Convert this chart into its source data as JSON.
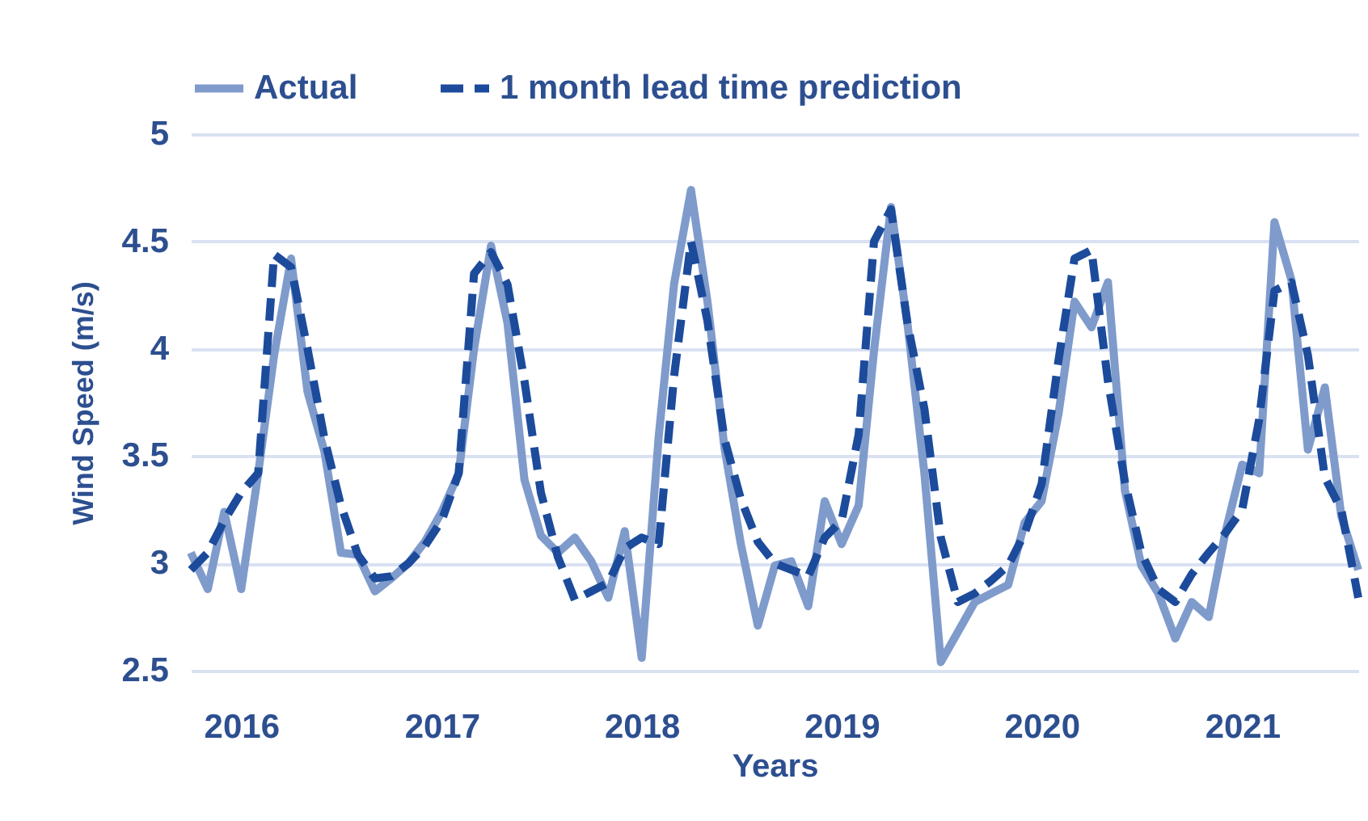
{
  "chart_data": {
    "type": "line",
    "xlabel": "Years",
    "ylabel": "Wind Speed (m/s)",
    "x": [
      "2015-10",
      "2015-11",
      "2015-12",
      "2016-01",
      "2016-02",
      "2016-03",
      "2016-04",
      "2016-05",
      "2016-06",
      "2016-07",
      "2016-08",
      "2016-09",
      "2016-10",
      "2016-11",
      "2016-12",
      "2017-01",
      "2017-02",
      "2017-03",
      "2017-04",
      "2017-05",
      "2017-06",
      "2017-07",
      "2017-08",
      "2017-09",
      "2017-10",
      "2017-11",
      "2017-12",
      "2018-01",
      "2018-02",
      "2018-03",
      "2018-04",
      "2018-05",
      "2018-06",
      "2018-07",
      "2018-08",
      "2018-09",
      "2018-10",
      "2018-11",
      "2018-12",
      "2019-01",
      "2019-02",
      "2019-03",
      "2019-04",
      "2019-05",
      "2019-06",
      "2019-07",
      "2019-08",
      "2019-09",
      "2019-10",
      "2019-11",
      "2019-12",
      "2020-01",
      "2020-02",
      "2020-03",
      "2020-04",
      "2020-05",
      "2020-06",
      "2020-07",
      "2020-08",
      "2020-09",
      "2020-10",
      "2020-11",
      "2020-12",
      "2021-01",
      "2021-02",
      "2021-03",
      "2021-04",
      "2021-05",
      "2021-06",
      "2021-07",
      "2021-08"
    ],
    "series": [
      {
        "name": "Actual",
        "color": "#7f9bcc",
        "line_style": "solid",
        "values": [
          3.05,
          2.88,
          3.24,
          2.88,
          3.42,
          3.97,
          4.42,
          3.8,
          3.52,
          3.05,
          3.04,
          2.87,
          2.93,
          3.0,
          3.1,
          3.24,
          3.42,
          4.0,
          4.48,
          4.12,
          3.39,
          3.13,
          3.05,
          3.12,
          3.01,
          2.84,
          3.15,
          2.56,
          3.59,
          4.3,
          4.74,
          4.22,
          3.54,
          3.09,
          2.71,
          2.99,
          3.01,
          2.8,
          3.29,
          3.09,
          3.27,
          3.99,
          4.66,
          4.12,
          3.42,
          2.54,
          2.68,
          2.82,
          2.86,
          2.9,
          3.19,
          3.29,
          3.7,
          4.22,
          4.1,
          4.31,
          3.34,
          2.99,
          2.86,
          2.65,
          2.82,
          2.75,
          3.14,
          3.46,
          3.42,
          4.59,
          4.32,
          3.53,
          3.82,
          3.22,
          2.97
        ]
      },
      {
        "name": "1 month lead time prediction",
        "color": "#1c4b9b",
        "line_style": "dashed",
        "values": [
          2.97,
          3.05,
          3.2,
          3.33,
          3.42,
          4.44,
          4.38,
          4.0,
          3.58,
          3.27,
          3.04,
          2.93,
          2.94,
          3.0,
          3.08,
          3.2,
          3.42,
          4.35,
          4.45,
          4.3,
          3.85,
          3.33,
          3.03,
          2.83,
          2.87,
          2.91,
          3.07,
          3.12,
          3.09,
          3.87,
          4.5,
          4.13,
          3.58,
          3.3,
          3.1,
          3.0,
          2.97,
          2.94,
          3.12,
          3.2,
          3.6,
          4.5,
          4.65,
          4.12,
          3.72,
          3.12,
          2.82,
          2.86,
          2.92,
          2.99,
          3.14,
          3.37,
          3.95,
          4.42,
          4.46,
          3.85,
          3.38,
          3.05,
          2.88,
          2.82,
          2.95,
          3.05,
          3.14,
          3.25,
          3.67,
          4.27,
          4.31,
          3.97,
          3.4,
          3.25,
          2.84
        ]
      }
    ],
    "xlim": [
      "2015-10",
      "2021-08"
    ],
    "xticks": [
      "2016",
      "2017",
      "2018",
      "2019",
      "2020",
      "2021"
    ],
    "ylim": [
      2.5,
      5
    ],
    "yticks": [
      2.5,
      3,
      3.5,
      4,
      4.5,
      5
    ],
    "grid": "y",
    "legend": "top",
    "marker": "none"
  }
}
